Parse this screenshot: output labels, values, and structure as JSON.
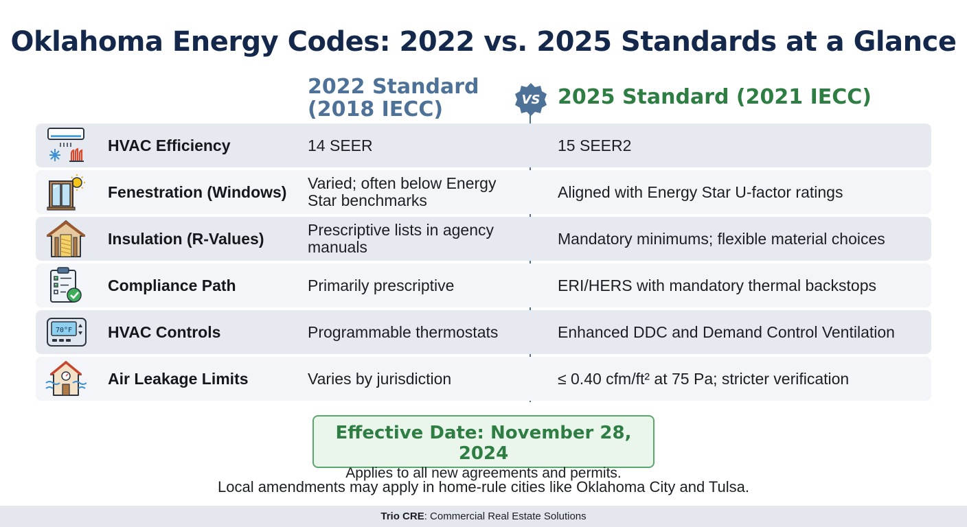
{
  "title": "Oklahoma Energy Codes: 2022 vs. 2025 Standards at a Glance",
  "columns": {
    "left": "2022 Standard (2018 IECC)",
    "vs": "VS",
    "right": "2025 Standard (2021 IECC)"
  },
  "rows": [
    {
      "label": "HVAC Efficiency",
      "icon": "air-conditioner-icon",
      "v2022": "14 SEER",
      "v2025": "15 SEER2"
    },
    {
      "label": "Fenestration (Windows)",
      "icon": "window-sun-icon",
      "v2022": "Varied; often below Energy Star benchmarks",
      "v2025": "Aligned with Energy Star U-factor ratings"
    },
    {
      "label": "Insulation (R-Values)",
      "icon": "house-insulation-icon",
      "v2022": "Prescriptive lists in agency manuals",
      "v2025": "Mandatory minimums; flexible material choices"
    },
    {
      "label": "Compliance Path",
      "icon": "clipboard-check-icon",
      "v2022": "Primarily prescriptive",
      "v2025": "ERI/HERS with mandatory thermal backstops"
    },
    {
      "label": "HVAC Controls",
      "icon": "thermostat-icon",
      "v2022": "Programmable thermostats",
      "v2025": "Enhanced DDC and Demand Control Ventilation"
    },
    {
      "label": "Air Leakage Limits",
      "icon": "house-airflow-icon",
      "v2022": "Varies by jurisdiction",
      "v2025": "≤ 0.40 cfm/ft² at 75 Pa; stricter verification"
    }
  ],
  "thermostat_display": "70°F",
  "effective": {
    "date": "Effective Date: November 28, 2024",
    "applies": "Applies to all new agreements and permits."
  },
  "note": "Local amendments may apply in home-rule cities like Oklahoma City and Tulsa.",
  "footer": {
    "brand": "Trio CRE",
    "tagline": ": Commercial Real Estate Solutions"
  },
  "colors": {
    "title": "#14284b",
    "col2022": "#4e7198",
    "col2025": "#2e7d43",
    "row_shade": "#e6eaf0",
    "row_light": "#f3f5f8"
  }
}
